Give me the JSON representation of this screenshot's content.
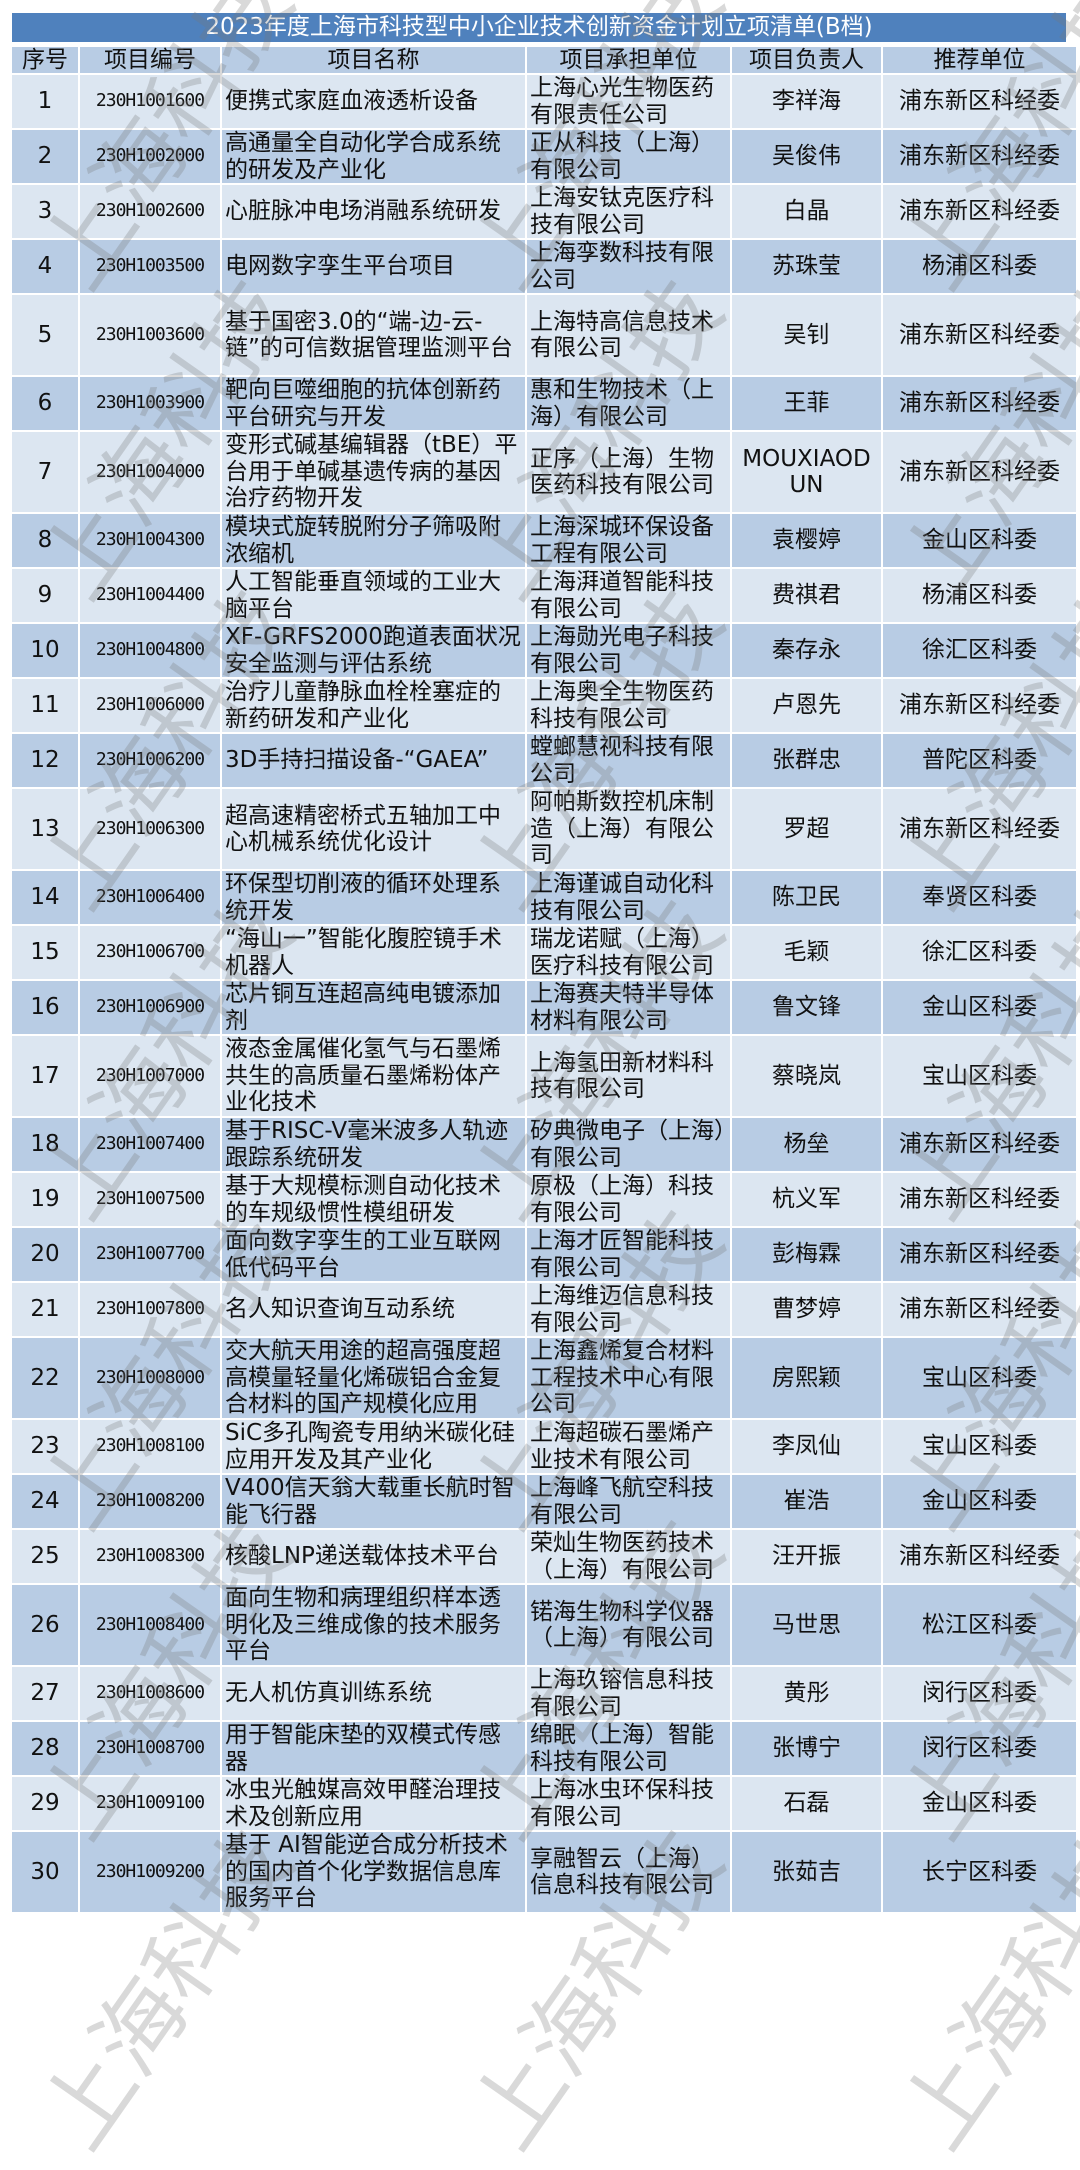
{
  "title": "2023年度上海市科技型中小企业技术创新资金计划立项清单(B档)",
  "watermark": "上海科技",
  "colors": {
    "title_bg": "#4f81bd",
    "header_bg": "#b8cce4",
    "row_light": "#dce6f1",
    "row_dark": "#b8cce4"
  },
  "columns": [
    "序号",
    "项目编号",
    "项目名称",
    "项目承担单位",
    "项目负责人",
    "推荐单位"
  ],
  "rows": [
    [
      "1",
      "230H1001600",
      "便携式家庭血液透析设备",
      "上海心光生物医药有限责任公司",
      "李祥海",
      "浦东新区科经委"
    ],
    [
      "2",
      "230H1002000",
      "高通量全自动化学合成系统的研发及产业化",
      "正从科技（上海）有限公司",
      "吴俊伟",
      "浦东新区科经委"
    ],
    [
      "3",
      "230H1002600",
      "心脏脉冲电场消融系统研发",
      "上海安钛克医疗科技有限公司",
      "白晶",
      "浦东新区科经委"
    ],
    [
      "4",
      "230H1003500",
      "电网数字孪生平台项目",
      "上海孪数科技有限公司",
      "苏珠莹",
      "杨浦区科委"
    ],
    [
      "5",
      "230H1003600",
      "基于国密3.0的“端-边-云-链”的可信数据管理监测平台",
      "上海特高信息技术有限公司",
      "吴钊",
      "浦东新区科经委"
    ],
    [
      "6",
      "230H1003900",
      "靶向巨噬细胞的抗体创新药平台研究与开发",
      "惠和生物技术（上海）有限公司",
      "王菲",
      "浦东新区科经委"
    ],
    [
      "7",
      "230H1004000",
      "变形式碱基编辑器（tBE）平台用于单碱基遗传病的基因治疗药物开发",
      "正序（上海）生物医药科技有限公司",
      "MOUXIAODUN",
      "浦东新区科经委"
    ],
    [
      "8",
      "230H1004300",
      "模块式旋转脱附分子筛吸附浓缩机",
      "上海深城环保设备工程有限公司",
      "袁樱婷",
      "金山区科委"
    ],
    [
      "9",
      "230H1004400",
      "人工智能垂直领域的工业大脑平台",
      "上海湃道智能科技有限公司",
      "费祺君",
      "杨浦区科委"
    ],
    [
      "10",
      "230H1004800",
      "XF-GRFS2000跑道表面状况安全监测与评估系统",
      "上海勋光电子科技有限公司",
      "秦存永",
      "徐汇区科委"
    ],
    [
      "11",
      "230H1006000",
      "治疗儿童静脉血栓栓塞症的新药研发和产业化",
      "上海奥全生物医药科技有限公司",
      "卢恩先",
      "浦东新区科经委"
    ],
    [
      "12",
      "230H1006200",
      "3D手持扫描设备-“GAEA”",
      "螳螂慧视科技有限公司",
      "张群忠",
      "普陀区科委"
    ],
    [
      "13",
      "230H1006300",
      "超高速精密桥式五轴加工中心机械系统优化设计",
      "阿帕斯数控机床制造（上海）有限公司",
      "罗超",
      "浦东新区科经委"
    ],
    [
      "14",
      "230H1006400",
      "环保型切削液的循环处理系统开发",
      "上海谨诚自动化科技有限公司",
      "陈卫民",
      "奉贤区科委"
    ],
    [
      "15",
      "230H1006700",
      "“海山一”智能化腹腔镜手术机器人",
      "瑞龙诺赋（上海）医疗科技有限公司",
      "毛颖",
      "徐汇区科委"
    ],
    [
      "16",
      "230H1006900",
      "芯片铜互连超高纯电镀添加剂",
      "上海赛夫特半导体材料有限公司",
      "鲁文锋",
      "金山区科委"
    ],
    [
      "17",
      "230H1007000",
      "液态金属催化氢气与石墨烯共生的高质量石墨烯粉体产业化技术",
      "上海氢田新材料科技有限公司",
      "蔡晓岚",
      "宝山区科委"
    ],
    [
      "18",
      "230H1007400",
      "基于RISC-V毫米波多人轨迹跟踪系统研发",
      "矽典微电子（上海）有限公司",
      "杨垒",
      "浦东新区科经委"
    ],
    [
      "19",
      "230H1007500",
      "基于大规模标测自动化技术的车规级惯性模组研发",
      "原极（上海）科技有限公司",
      "杭义军",
      "浦东新区科经委"
    ],
    [
      "20",
      "230H1007700",
      "面向数字孪生的工业互联网低代码平台",
      "上海才匠智能科技有限公司",
      "彭梅霖",
      "浦东新区科经委"
    ],
    [
      "21",
      "230H1007800",
      "名人知识查询互动系统",
      "上海维迈信息科技有限公司",
      "曹梦婷",
      "浦东新区科经委"
    ],
    [
      "22",
      "230H1008000",
      "交大航天用途的超高强度超高模量轻量化烯碳铝合金复合材料的国产规模化应用",
      "上海鑫烯复合材料工程技术中心有限公司",
      "房熙颖",
      "宝山区科委"
    ],
    [
      "23",
      "230H1008100",
      "SiC多孔陶瓷专用纳米碳化硅应用开发及其产业化",
      "上海超碳石墨烯产业技术有限公司",
      "李凤仙",
      "宝山区科委"
    ],
    [
      "24",
      "230H1008200",
      "V400信天翁大载重长航时智能飞行器",
      "上海峰飞航空科技有限公司",
      "崔浩",
      "金山区科委"
    ],
    [
      "25",
      "230H1008300",
      "核酸LNP递送载体技术平台",
      "荣灿生物医药技术（上海）有限公司",
      "汪开振",
      "浦东新区科经委"
    ],
    [
      "26",
      "230H1008400",
      "面向生物和病理组织样本透明化及三维成像的技术服务平台",
      "锘海生物科学仪器（上海）有限公司",
      "马世思",
      "松江区科委"
    ],
    [
      "27",
      "230H1008600",
      "无人机仿真训练系统",
      "上海玖镕信息科技有限公司",
      "黄彤",
      "闵行区科委"
    ],
    [
      "28",
      "230H1008700",
      "用于智能床垫的双模式传感器",
      "绵眠（上海）智能科技有限公司",
      "张博宁",
      "闵行区科委"
    ],
    [
      "29",
      "230H1009100",
      "冰虫光触媒高效甲醛治理技术及创新应用",
      "上海冰虫环保科技有限公司",
      "石磊",
      "金山区科委"
    ],
    [
      "30",
      "230H1009200",
      "基于 AI智能逆合成分析技术的国内首个化学数据信息库服务平台",
      "享融智云（上海）信息科技有限公司",
      "张茹吉",
      "长宁区科委"
    ]
  ]
}
